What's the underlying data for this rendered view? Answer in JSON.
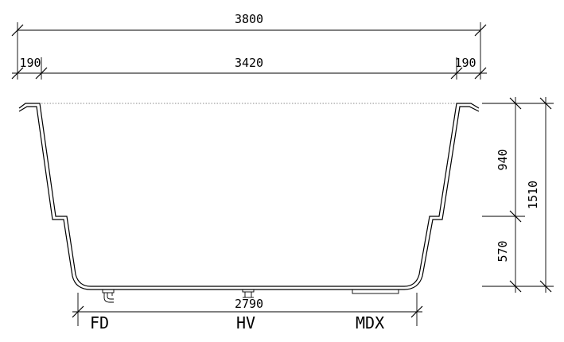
{
  "dimensions": {
    "overall_width": "3800",
    "flange_left": "190",
    "inner_width": "3420",
    "flange_right": "190",
    "bottom_width": "2790",
    "upper_height": "940",
    "lower_height": "570",
    "total_height": "1510"
  },
  "fittings": {
    "fd": "FD",
    "hv": "HV",
    "mdx": "MDX"
  }
}
